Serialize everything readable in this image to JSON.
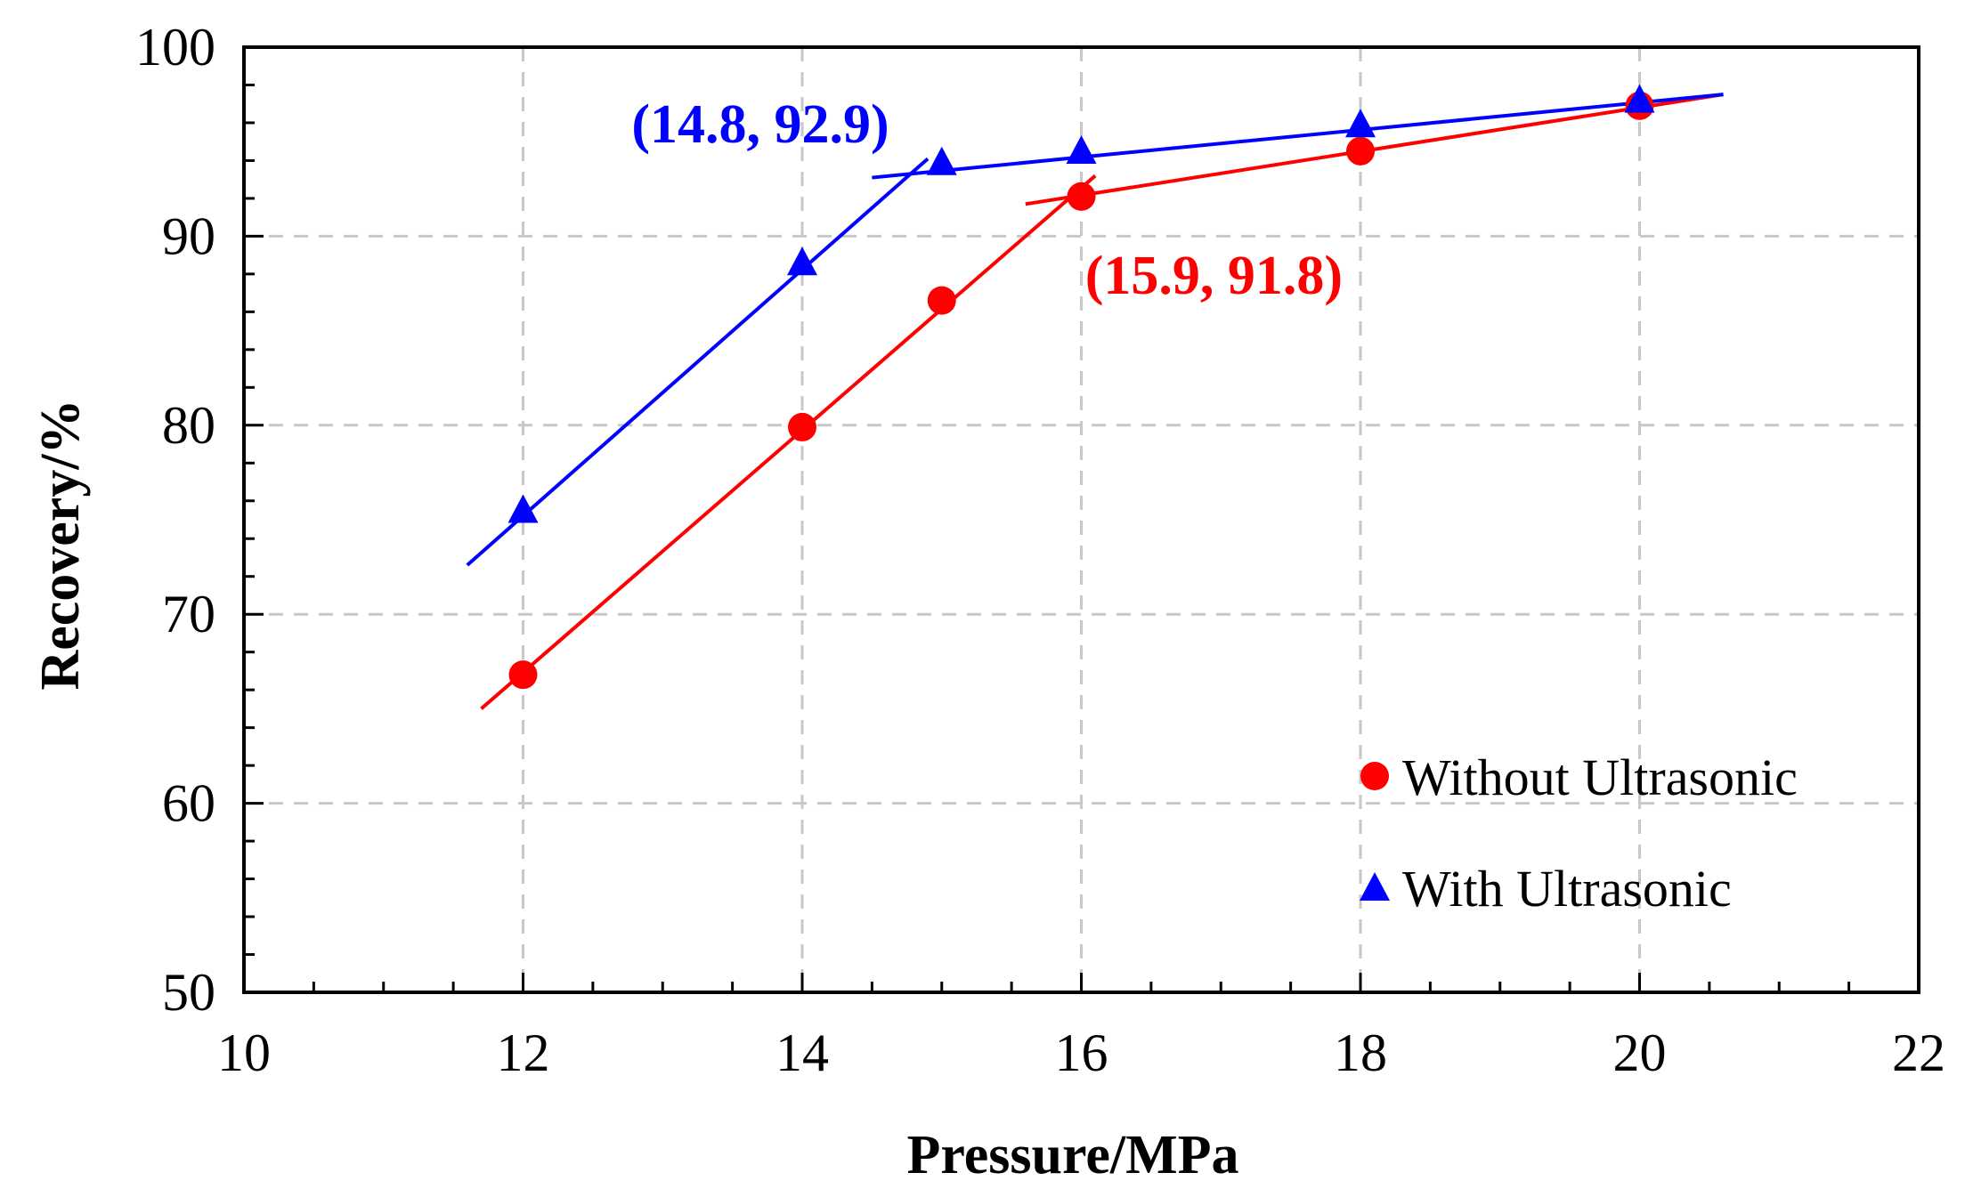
{
  "chart_data": {
    "type": "scatter",
    "title": "",
    "xlabel": "Pressure/MPa",
    "ylabel": "Recovery/%",
    "xlim": [
      10,
      22
    ],
    "ylim": [
      50,
      100
    ],
    "xticks": [
      10,
      12,
      14,
      16,
      18,
      20,
      22
    ],
    "yticks": [
      50,
      60,
      70,
      80,
      90,
      100
    ],
    "grid": true,
    "legend_position": "bottom-right",
    "series": [
      {
        "name": "Without Ultrasonic",
        "marker": "circle",
        "color": "#ff0000",
        "x": [
          12,
          14,
          15,
          16,
          18,
          20
        ],
        "y": [
          66.8,
          79.9,
          86.6,
          92.1,
          94.5,
          96.9
        ],
        "fit_lines": [
          {
            "x": [
              11.7,
              16.1
            ],
            "y": [
              65.0,
              93.2
            ]
          },
          {
            "x": [
              15.6,
              20.6
            ],
            "y": [
              91.7,
              97.5
            ]
          }
        ]
      },
      {
        "name": "With Ultrasonic",
        "marker": "triangle",
        "color": "#0000ff",
        "x": [
          12,
          14,
          15,
          16,
          18,
          20
        ],
        "y": [
          75.4,
          88.5,
          93.8,
          94.4,
          95.8,
          97.1
        ],
        "fit_lines": [
          {
            "x": [
              11.6,
              14.9
            ],
            "y": [
              72.6,
              94.1
            ]
          },
          {
            "x": [
              14.5,
              20.6
            ],
            "y": [
              93.1,
              97.5
            ]
          }
        ]
      }
    ],
    "annotations": [
      {
        "text": "(14.8, 92.9)",
        "color": "#0000ff",
        "anchor_x": 13.7,
        "anchor_y": 96.0
      },
      {
        "text": "(15.9, 91.8)",
        "color": "#ff0000",
        "anchor_x": 16.95,
        "anchor_y": 88.0
      }
    ]
  }
}
